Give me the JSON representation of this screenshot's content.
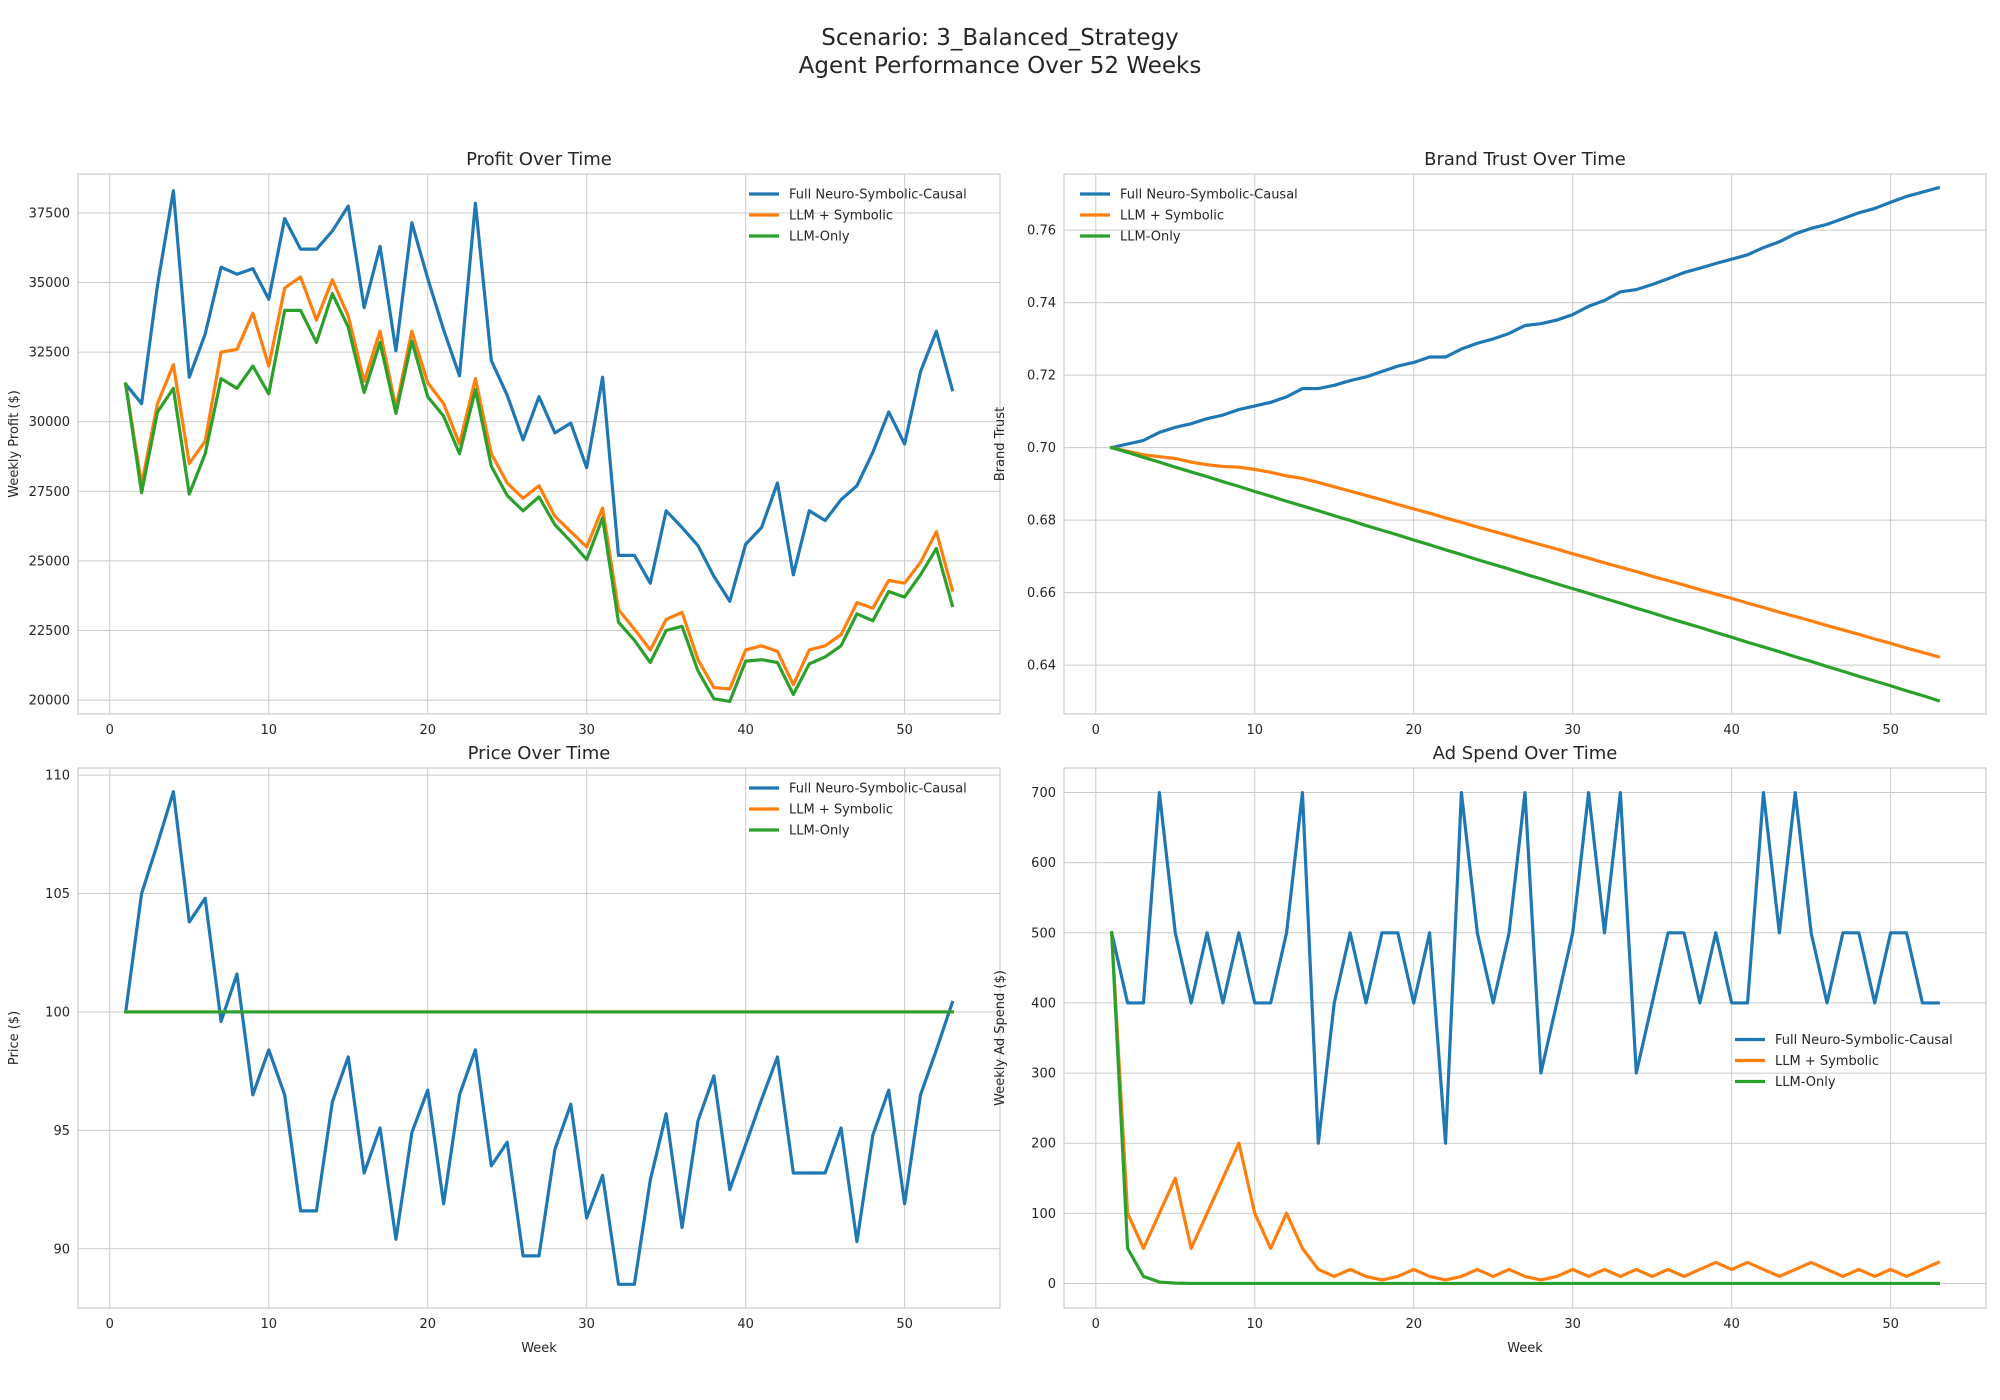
{
  "figure": {
    "title_line1": "Scenario: 3_Balanced_Strategy",
    "title_line2": "Agent Performance Over 52 Weeks"
  },
  "colors": {
    "Full Neuro-Symbolic-Causal": "#1f77b4",
    "LLM + Symbolic": "#ff7f0e",
    "LLM-Only": "#2ca02c",
    "axes_bg": "#ffffff",
    "grid": "#cccccc",
    "spine": "#cccccc",
    "text": "#262626"
  },
  "chart_data": [
    {
      "type": "line",
      "title": "Profit Over Time",
      "xlabel": "",
      "ylabel": "Weekly Profit ($)",
      "xlim": [
        -2,
        56
      ],
      "ylim": [
        19500,
        38900
      ],
      "xticks": [
        0,
        10,
        20,
        30,
        40,
        50
      ],
      "yticks": [
        20000,
        22500,
        25000,
        27500,
        30000,
        32500,
        35000,
        37500
      ],
      "grid": true,
      "legend": "top-right",
      "x_start": 1,
      "series": [
        {
          "name": "Full Neuro-Symbolic-Causal",
          "values": [
            31350,
            30650,
            34900,
            38300,
            31600,
            33150,
            35550,
            35300,
            35500,
            34400,
            37300,
            36200,
            36200,
            36850,
            37750,
            34100,
            36300,
            32550,
            37150,
            35150,
            33300,
            31650,
            37850,
            32200,
            30950,
            29350,
            30900,
            29600,
            29950,
            28350,
            31600,
            25200,
            25200,
            24200,
            26800,
            26200,
            25550,
            24450,
            23550,
            25600,
            26200,
            27800,
            24500,
            26800,
            26450,
            27200,
            27700,
            28900,
            30350,
            29200,
            31800,
            33250,
            31150
          ]
        },
        {
          "name": "LLM + Symbolic",
          "values": [
            31350,
            27750,
            30650,
            32050,
            28500,
            29300,
            32500,
            32600,
            33900,
            32000,
            34800,
            35200,
            33650,
            35100,
            33800,
            31450,
            33250,
            30500,
            33250,
            31400,
            30650,
            29200,
            31550,
            28850,
            27800,
            27250,
            27700,
            26600,
            26050,
            25500,
            26900,
            23250,
            22550,
            21800,
            22900,
            23150,
            21450,
            20450,
            20400,
            21800,
            21950,
            21750,
            20550,
            21800,
            21950,
            22350,
            23500,
            23300,
            24300,
            24200,
            24950,
            26050,
            23950
          ]
        },
        {
          "name": "LLM-Only",
          "values": [
            31350,
            27450,
            30350,
            31200,
            27400,
            28850,
            31550,
            31200,
            32000,
            31000,
            34000,
            34000,
            32850,
            34600,
            33400,
            31050,
            32850,
            30300,
            32900,
            30900,
            30200,
            28850,
            31150,
            28400,
            27350,
            26800,
            27300,
            26300,
            25700,
            25050,
            26550,
            22800,
            22150,
            21350,
            22500,
            22650,
            21050,
            20050,
            19950,
            21400,
            21450,
            21350,
            20200,
            21300,
            21550,
            21950,
            23100,
            22850,
            23900,
            23700,
            24500,
            25450,
            23400
          ]
        }
      ]
    },
    {
      "type": "line",
      "title": "Brand Trust Over Time",
      "xlabel": "",
      "ylabel": "Brand Trust",
      "xlim": [
        -2,
        56
      ],
      "ylim": [
        0.6265,
        0.7755
      ],
      "xticks": [
        0,
        10,
        20,
        30,
        40,
        50
      ],
      "yticks": [
        0.64,
        0.66,
        0.68,
        0.7,
        0.72,
        0.74,
        0.76
      ],
      "ytick_labels": [
        "0.64",
        "0.66",
        "0.68",
        "0.70",
        "0.72",
        "0.74",
        "0.76"
      ],
      "grid": true,
      "legend": "top-left",
      "x_start": 1,
      "series": [
        {
          "name": "Full Neuro-Symbolic-Causal",
          "values": [
            0.7,
            0.701,
            0.702,
            0.7042,
            0.7056,
            0.7066,
            0.708,
            0.709,
            0.7105,
            0.7115,
            0.7125,
            0.714,
            0.7163,
            0.7163,
            0.7172,
            0.7185,
            0.7195,
            0.721,
            0.7225,
            0.7235,
            0.725,
            0.725,
            0.7272,
            0.7288,
            0.73,
            0.7315,
            0.7337,
            0.7342,
            0.7352,
            0.7367,
            0.739,
            0.7406,
            0.743,
            0.7436,
            0.745,
            0.7466,
            0.7483,
            0.7495,
            0.7508,
            0.752,
            0.7532,
            0.7552,
            0.7568,
            0.759,
            0.7605,
            0.7616,
            0.7632,
            0.7648,
            0.766,
            0.7677,
            0.7693,
            0.7705,
            0.7717
          ]
        },
        {
          "name": "LLM + Symbolic",
          "values": [
            0.7,
            0.699,
            0.698,
            0.6975,
            0.697,
            0.696,
            0.6953,
            0.6948,
            0.6946,
            0.694,
            0.6932,
            0.6922,
            0.6915,
            0.6904,
            0.6892,
            0.688,
            0.6868,
            0.6856,
            0.6843,
            0.6831,
            0.6819,
            0.6806,
            0.6794,
            0.6781,
            0.6769,
            0.6757,
            0.6744,
            0.6732,
            0.672,
            0.6707,
            0.6695,
            0.6682,
            0.667,
            0.6658,
            0.6645,
            0.6633,
            0.6621,
            0.6608,
            0.6596,
            0.6584,
            0.6571,
            0.6559,
            0.6546,
            0.6534,
            0.6522,
            0.6509,
            0.6497,
            0.6485,
            0.6472,
            0.646,
            0.6447,
            0.6435,
            0.6423
          ]
        },
        {
          "name": "LLM-Only",
          "values": [
            0.7,
            0.6987,
            0.6973,
            0.696,
            0.6946,
            0.6933,
            0.692,
            0.6906,
            0.6893,
            0.6879,
            0.6866,
            0.6852,
            0.6839,
            0.6826,
            0.6812,
            0.6799,
            0.6785,
            0.6772,
            0.6759,
            0.6745,
            0.6732,
            0.6718,
            0.6705,
            0.6691,
            0.6678,
            0.6665,
            0.6651,
            0.6638,
            0.6624,
            0.6611,
            0.6598,
            0.6584,
            0.6571,
            0.6557,
            0.6544,
            0.653,
            0.6517,
            0.6504,
            0.649,
            0.6477,
            0.6463,
            0.645,
            0.6437,
            0.6423,
            0.641,
            0.6396,
            0.6383,
            0.6369,
            0.6356,
            0.6343,
            0.6329,
            0.6316,
            0.6302
          ]
        }
      ]
    },
    {
      "type": "line",
      "title": "Price Over Time",
      "xlabel": "Week",
      "ylabel": "Price ($)",
      "xlim": [
        -2,
        56
      ],
      "ylim": [
        87.5,
        110.3
      ],
      "xticks": [
        0,
        10,
        20,
        30,
        40,
        50
      ],
      "yticks": [
        90,
        95,
        100,
        105,
        110
      ],
      "grid": true,
      "legend": "top-right",
      "x_start": 1,
      "series": [
        {
          "name": "Full Neuro-Symbolic-Causal",
          "values": [
            100,
            105,
            107.1,
            109.3,
            103.8,
            104.8,
            99.6,
            101.6,
            96.5,
            98.4,
            96.5,
            91.6,
            91.6,
            96.2,
            98.1,
            93.2,
            95.1,
            90.4,
            94.9,
            96.7,
            91.9,
            96.5,
            98.4,
            93.5,
            94.5,
            89.7,
            89.7,
            94.2,
            96.1,
            91.3,
            93.1,
            88.5,
            88.5,
            92.9,
            95.7,
            90.9,
            95.4,
            97.3,
            92.5,
            94.4,
            96.3,
            98.1,
            93.2,
            93.2,
            93.2,
            95.1,
            90.3,
            94.8,
            96.7,
            91.9,
            96.5,
            98.4,
            100.4
          ]
        },
        {
          "name": "LLM + Symbolic",
          "values": [
            100,
            100,
            100,
            100,
            100,
            100,
            100,
            100,
            100,
            100,
            100,
            100,
            100,
            100,
            100,
            100,
            100,
            100,
            100,
            100,
            100,
            100,
            100,
            100,
            100,
            100,
            100,
            100,
            100,
            100,
            100,
            100,
            100,
            100,
            100,
            100,
            100,
            100,
            100,
            100,
            100,
            100,
            100,
            100,
            100,
            100,
            100,
            100,
            100,
            100,
            100,
            100,
            100
          ]
        },
        {
          "name": "LLM-Only",
          "values": [
            100,
            100,
            100,
            100,
            100,
            100,
            100,
            100,
            100,
            100,
            100,
            100,
            100,
            100,
            100,
            100,
            100,
            100,
            100,
            100,
            100,
            100,
            100,
            100,
            100,
            100,
            100,
            100,
            100,
            100,
            100,
            100,
            100,
            100,
            100,
            100,
            100,
            100,
            100,
            100,
            100,
            100,
            100,
            100,
            100,
            100,
            100,
            100,
            100,
            100,
            100,
            100,
            100
          ]
        }
      ]
    },
    {
      "type": "line",
      "title": "Ad Spend Over Time",
      "xlabel": "Week",
      "ylabel": "Weekly Ad Spend ($)",
      "xlim": [
        -2,
        56
      ],
      "ylim": [
        -35,
        735
      ],
      "xticks": [
        0,
        10,
        20,
        30,
        40,
        50
      ],
      "yticks": [
        0,
        100,
        200,
        300,
        400,
        500,
        600,
        700
      ],
      "grid": true,
      "legend": "center-right",
      "x_start": 1,
      "series": [
        {
          "name": "Full Neuro-Symbolic-Causal",
          "values": [
            500,
            400,
            400,
            700,
            500,
            400,
            500,
            400,
            500,
            400,
            400,
            500,
            700,
            200,
            400,
            500,
            400,
            500,
            500,
            400,
            500,
            200,
            700,
            500,
            400,
            500,
            700,
            300,
            400,
            500,
            700,
            500,
            700,
            300,
            400,
            500,
            500,
            400,
            500,
            400,
            400,
            700,
            500,
            700,
            500,
            400,
            500,
            500,
            400,
            500,
            500,
            400,
            400
          ]
        },
        {
          "name": "LLM + Symbolic",
          "values": [
            500,
            100,
            50,
            100,
            150,
            50,
            100,
            150,
            200,
            100,
            50,
            100,
            50,
            20,
            10,
            20,
            10,
            5,
            10,
            20,
            10,
            5,
            10,
            20,
            10,
            20,
            10,
            5,
            10,
            20,
            10,
            20,
            10,
            20,
            10,
            20,
            10,
            20,
            30,
            20,
            30,
            20,
            10,
            20,
            30,
            20,
            10,
            20,
            10,
            20,
            10,
            20,
            30
          ]
        },
        {
          "name": "LLM-Only",
          "values": [
            500,
            50,
            10,
            2,
            0.5,
            0,
            0,
            0,
            0,
            0,
            0,
            0,
            0,
            0,
            0,
            0,
            0,
            0,
            0,
            0,
            0,
            0,
            0,
            0,
            0,
            0,
            0,
            0,
            0,
            0,
            0,
            0,
            0,
            0,
            0,
            0,
            0,
            0,
            0,
            0,
            0,
            0,
            0,
            0,
            0,
            0,
            0,
            0,
            0,
            0,
            0,
            0,
            0
          ]
        }
      ]
    }
  ]
}
